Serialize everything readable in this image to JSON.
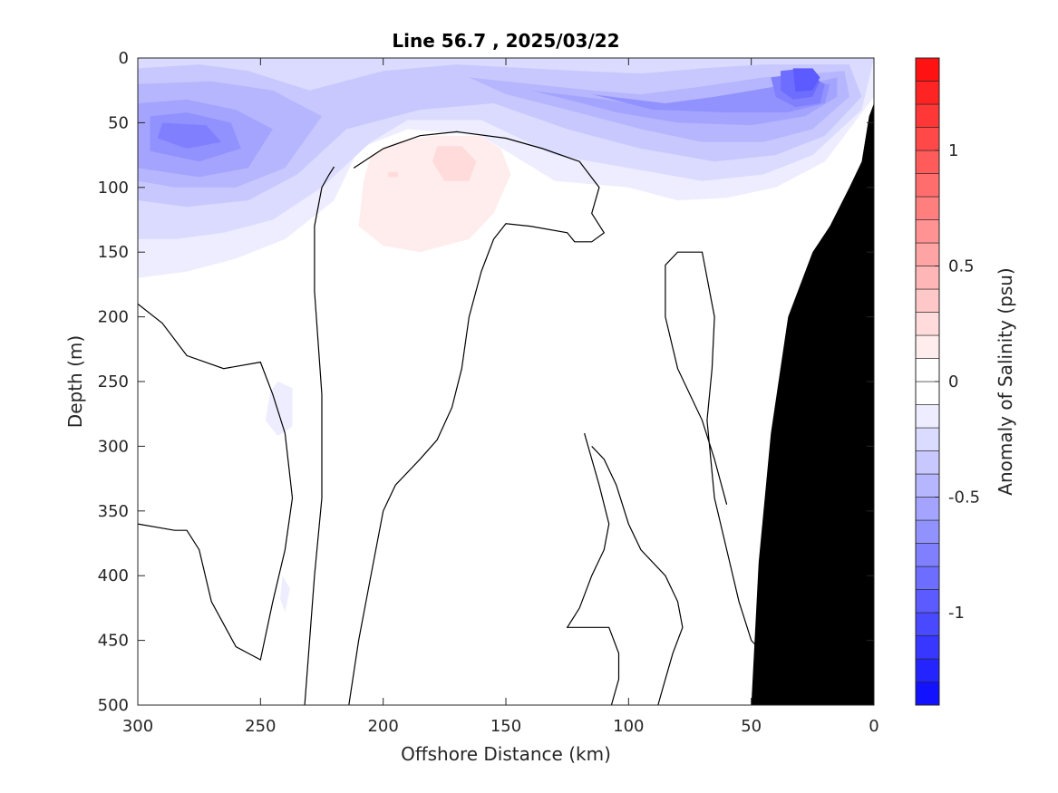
{
  "chart_data": {
    "type": "contour",
    "title": "Line 56.7 , 2025/03/22",
    "xlabel": "Offshore Distance (km)",
    "ylabel": "Depth (m)",
    "xlim": [
      300,
      0
    ],
    "ylim": [
      0,
      500
    ],
    "x_reversed": true,
    "y_reversed": true,
    "x_ticks": [
      "300",
      "250",
      "200",
      "150",
      "100",
      "50",
      "0"
    ],
    "y_ticks": [
      "0",
      "50",
      "100",
      "150",
      "200",
      "250",
      "300",
      "350",
      "400",
      "450",
      "500"
    ],
    "colorbar": {
      "label": "Anomaly of Salinity (psu)",
      "min": -1.4,
      "max": 1.4,
      "step": 0.1,
      "ticks": [
        "1",
        "0.5",
        "0",
        "-0.5",
        "-1"
      ],
      "low_color": "#0000ff",
      "mid_color": "#ffffff",
      "high_color": "#ff0000"
    },
    "regions": [
      {
        "name": "surface fresh layer",
        "level": -0.1,
        "points": [
          [
            300,
            0
          ],
          [
            0,
            0
          ],
          [
            0,
            30
          ],
          [
            20,
            80
          ],
          [
            40,
            100
          ],
          [
            60,
            108
          ],
          [
            80,
            110
          ],
          [
            100,
            100
          ],
          [
            130,
            95
          ],
          [
            160,
            60
          ],
          [
            190,
            55
          ],
          [
            210,
            70
          ],
          [
            220,
            110
          ],
          [
            240,
            140
          ],
          [
            260,
            155
          ],
          [
            280,
            165
          ],
          [
            300,
            170
          ]
        ]
      },
      {
        "name": "surface fresh layer",
        "level": -0.2,
        "points": [
          [
            300,
            0
          ],
          [
            0,
            0
          ],
          [
            5,
            40
          ],
          [
            25,
            75
          ],
          [
            45,
            90
          ],
          [
            70,
            95
          ],
          [
            100,
            85
          ],
          [
            130,
            75
          ],
          [
            160,
            48
          ],
          [
            190,
            48
          ],
          [
            205,
            65
          ],
          [
            225,
            100
          ],
          [
            245,
            125
          ],
          [
            265,
            135
          ],
          [
            285,
            140
          ],
          [
            300,
            140
          ]
        ]
      },
      {
        "name": "surface fresh layer",
        "level": -0.3,
        "points": [
          [
            300,
            8
          ],
          [
            275,
            5
          ],
          [
            255,
            10
          ],
          [
            230,
            25
          ],
          [
            200,
            10
          ],
          [
            170,
            5
          ],
          [
            140,
            8
          ],
          [
            120,
            10
          ],
          [
            95,
            12
          ],
          [
            70,
            8
          ],
          [
            45,
            5
          ],
          [
            10,
            5
          ],
          [
            5,
            30
          ],
          [
            20,
            60
          ],
          [
            40,
            75
          ],
          [
            65,
            80
          ],
          [
            95,
            70
          ],
          [
            125,
            55
          ],
          [
            155,
            35
          ],
          [
            185,
            40
          ],
          [
            215,
            55
          ],
          [
            235,
            90
          ],
          [
            255,
            110
          ],
          [
            280,
            115
          ],
          [
            300,
            110
          ]
        ]
      },
      {
        "name": "surface fresh layer",
        "level": -0.4,
        "points": [
          [
            300,
            20
          ],
          [
            270,
            18
          ],
          [
            245,
            25
          ],
          [
            225,
            45
          ],
          [
            240,
            85
          ],
          [
            260,
            100
          ],
          [
            285,
            100
          ],
          [
            300,
            95
          ]
        ]
      },
      {
        "name": "surface fresh layer",
        "level": -0.4,
        "points": [
          [
            165,
            15
          ],
          [
            140,
            20
          ],
          [
            115,
            25
          ],
          [
            95,
            28
          ],
          [
            70,
            22
          ],
          [
            45,
            15
          ],
          [
            12,
            10
          ],
          [
            10,
            30
          ],
          [
            25,
            55
          ],
          [
            45,
            65
          ],
          [
            70,
            65
          ],
          [
            95,
            55
          ],
          [
            125,
            40
          ],
          [
            150,
            28
          ]
        ]
      },
      {
        "name": "surface fresh layer",
        "level": -0.5,
        "points": [
          [
            300,
            35
          ],
          [
            280,
            32
          ],
          [
            260,
            40
          ],
          [
            245,
            55
          ],
          [
            255,
            85
          ],
          [
            275,
            92
          ],
          [
            300,
            85
          ]
        ]
      },
      {
        "name": "surface fresh layer",
        "level": -0.5,
        "points": [
          [
            140,
            25
          ],
          [
            110,
            32
          ],
          [
            90,
            38
          ],
          [
            70,
            35
          ],
          [
            45,
            28
          ],
          [
            15,
            15
          ],
          [
            15,
            30
          ],
          [
            28,
            45
          ],
          [
            50,
            52
          ],
          [
            80,
            50
          ],
          [
            105,
            42
          ],
          [
            125,
            32
          ]
        ]
      },
      {
        "name": "surface fresh layer",
        "level": -0.6,
        "points": [
          [
            295,
            45
          ],
          [
            280,
            42
          ],
          [
            262,
            50
          ],
          [
            258,
            70
          ],
          [
            275,
            80
          ],
          [
            295,
            72
          ]
        ]
      },
      {
        "name": "surface fresh layer",
        "level": -0.6,
        "points": [
          [
            115,
            28
          ],
          [
            85,
            35
          ],
          [
            65,
            30
          ],
          [
            40,
            22
          ],
          [
            18,
            20
          ],
          [
            20,
            35
          ],
          [
            35,
            42
          ],
          [
            60,
            42
          ],
          [
            90,
            40
          ]
        ]
      },
      {
        "name": "surface fresh layer",
        "level": -0.7,
        "points": [
          [
            290,
            50
          ],
          [
            272,
            52
          ],
          [
            266,
            65
          ],
          [
            280,
            70
          ],
          [
            292,
            62
          ]
        ]
      },
      {
        "name": "surface fresh layer",
        "level": -0.7,
        "points": [
          [
            42,
            15
          ],
          [
            30,
            12
          ],
          [
            20,
            20
          ],
          [
            22,
            35
          ],
          [
            32,
            38
          ],
          [
            40,
            30
          ]
        ]
      },
      {
        "name": "surface fresh layer",
        "level": -0.8,
        "points": [
          [
            38,
            10
          ],
          [
            28,
            8
          ],
          [
            22,
            18
          ],
          [
            25,
            30
          ],
          [
            33,
            32
          ],
          [
            38,
            25
          ]
        ]
      },
      {
        "name": "surface fresh layer",
        "level": -0.9,
        "points": [
          [
            33,
            8
          ],
          [
            25,
            8
          ],
          [
            22,
            15
          ],
          [
            25,
            25
          ],
          [
            32,
            26
          ]
        ]
      },
      {
        "name": "fresh patch",
        "level": -0.1,
        "points": [
          [
            243,
            250
          ],
          [
            237,
            255
          ],
          [
            237,
            285
          ],
          [
            243,
            292
          ],
          [
            248,
            280
          ],
          [
            246,
            258
          ]
        ]
      },
      {
        "name": "fresh patch",
        "level": -0.1,
        "points": [
          [
            241,
            400
          ],
          [
            238,
            410
          ],
          [
            240,
            428
          ],
          [
            242,
            418
          ]
        ]
      },
      {
        "name": "subsurface salty core",
        "level": 0.1,
        "points": [
          [
            205,
            75
          ],
          [
            195,
            65
          ],
          [
            180,
            60
          ],
          [
            160,
            60
          ],
          [
            152,
            70
          ],
          [
            148,
            90
          ],
          [
            155,
            120
          ],
          [
            165,
            140
          ],
          [
            185,
            150
          ],
          [
            200,
            145
          ],
          [
            210,
            130
          ],
          [
            208,
            95
          ]
        ]
      },
      {
        "name": "subsurface salty core",
        "level": 0.2,
        "points": [
          [
            178,
            68
          ],
          [
            168,
            68
          ],
          [
            162,
            80
          ],
          [
            165,
            95
          ],
          [
            175,
            95
          ],
          [
            180,
            80
          ]
        ]
      },
      {
        "name": "subsurface salty core",
        "level": 0.2,
        "points": [
          [
            198,
            88
          ],
          [
            194,
            88
          ],
          [
            194,
            92
          ],
          [
            198,
            92
          ]
        ]
      }
    ],
    "zero_contours": [
      [
        [
          212,
          85
        ],
        [
          200,
          70
        ],
        [
          185,
          60
        ],
        [
          170,
          57
        ],
        [
          150,
          62
        ],
        [
          135,
          70
        ],
        [
          120,
          80
        ],
        [
          112,
          100
        ],
        [
          115,
          120
        ],
        [
          110,
          135
        ],
        [
          115,
          142
        ],
        [
          122,
          142
        ],
        [
          125,
          135
        ],
        [
          140,
          130
        ],
        [
          150,
          128
        ],
        [
          155,
          140
        ],
        [
          160,
          165
        ],
        [
          165,
          200
        ],
        [
          168,
          240
        ],
        [
          172,
          270
        ],
        [
          178,
          295
        ],
        [
          185,
          310
        ],
        [
          195,
          330
        ],
        [
          200,
          350
        ],
        [
          205,
          400
        ],
        [
          210,
          450
        ],
        [
          214,
          500
        ]
      ],
      [
        [
          300,
          190
        ],
        [
          290,
          205
        ],
        [
          280,
          230
        ],
        [
          265,
          240
        ],
        [
          250,
          235
        ],
        [
          245,
          260
        ],
        [
          240,
          290
        ],
        [
          237,
          340
        ],
        [
          240,
          380
        ],
        [
          245,
          420
        ],
        [
          250,
          465
        ],
        [
          260,
          455
        ],
        [
          270,
          420
        ],
        [
          275,
          380
        ],
        [
          280,
          365
        ],
        [
          285,
          365
        ],
        [
          300,
          360
        ]
      ],
      [
        [
          220,
          84
        ],
        [
          222,
          90
        ],
        [
          225,
          100
        ],
        [
          228,
          130
        ],
        [
          228,
          180
        ],
        [
          225,
          260
        ],
        [
          225,
          340
        ],
        [
          228,
          400
        ],
        [
          230,
          450
        ],
        [
          232,
          500
        ]
      ],
      [
        [
          60,
          345
        ],
        [
          65,
          310
        ],
        [
          70,
          280
        ],
        [
          80,
          240
        ],
        [
          85,
          200
        ],
        [
          85,
          160
        ],
        [
          80,
          150
        ],
        [
          70,
          150
        ],
        [
          65,
          200
        ],
        [
          66,
          240
        ],
        [
          68,
          280
        ],
        [
          65,
          340
        ],
        [
          60,
          380
        ],
        [
          55,
          420
        ],
        [
          50,
          450
        ],
        [
          40,
          470
        ],
        [
          30,
          475
        ],
        [
          28,
          490
        ]
      ],
      [
        [
          115,
          300
        ],
        [
          110,
          310
        ],
        [
          105,
          330
        ],
        [
          100,
          360
        ],
        [
          95,
          380
        ],
        [
          85,
          400
        ],
        [
          80,
          420
        ],
        [
          78,
          440
        ],
        [
          82,
          460
        ],
        [
          85,
          480
        ],
        [
          88,
          500
        ]
      ],
      [
        [
          107,
          500
        ],
        [
          104,
          480
        ],
        [
          104,
          460
        ],
        [
          108,
          440
        ],
        [
          125,
          440
        ],
        [
          120,
          425
        ],
        [
          115,
          400
        ],
        [
          110,
          380
        ],
        [
          108,
          360
        ],
        [
          112,
          330
        ],
        [
          118,
          290
        ]
      ]
    ],
    "bathymetry": [
      [
        0,
        35
      ],
      [
        2,
        45
      ],
      [
        5,
        80
      ],
      [
        10,
        100
      ],
      [
        18,
        130
      ],
      [
        25,
        150
      ],
      [
        35,
        200
      ],
      [
        42,
        290
      ],
      [
        47,
        390
      ],
      [
        50,
        500
      ],
      [
        0,
        500
      ]
    ],
    "bathymetry_color": "#000000"
  }
}
